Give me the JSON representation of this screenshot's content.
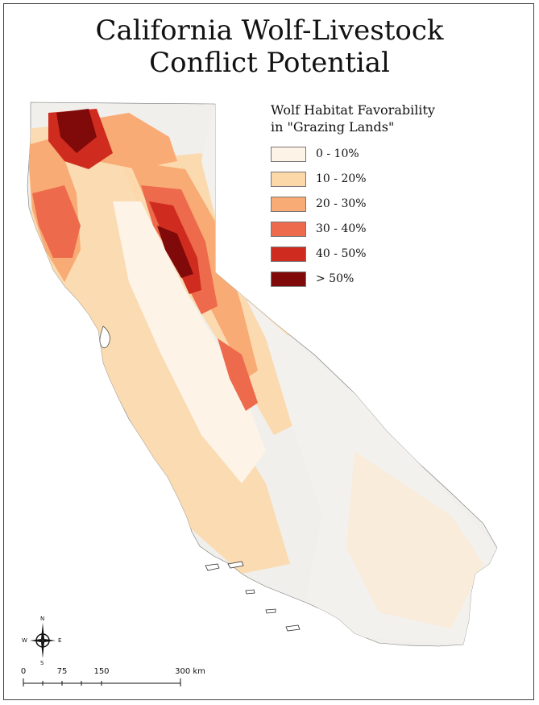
{
  "title": {
    "line1": "California Wolf-Livestock",
    "line2": "Conflict Potential"
  },
  "legend": {
    "title_line1": "Wolf Habitat Favorability",
    "title_line2": "in \"Grazing Lands\"",
    "items": [
      {
        "label": "0 - 10%",
        "color": "#fdf3e6"
      },
      {
        "label": "10 - 20%",
        "color": "#fcd7a8"
      },
      {
        "label": "20 - 30%",
        "color": "#f8ab74"
      },
      {
        "label": "30 - 40%",
        "color": "#ee6a4c"
      },
      {
        "label": "40 - 50%",
        "color": "#cf2c1f"
      },
      {
        "label": "> 50%",
        "color": "#800a0a"
      }
    ]
  },
  "compass": {
    "n": "N",
    "s": "S",
    "e": "E",
    "w": "W",
    "icon": "north-arrow-compass-icon"
  },
  "scale_bar": {
    "labels": [
      "0",
      "75",
      "150",
      "300 km"
    ]
  }
}
